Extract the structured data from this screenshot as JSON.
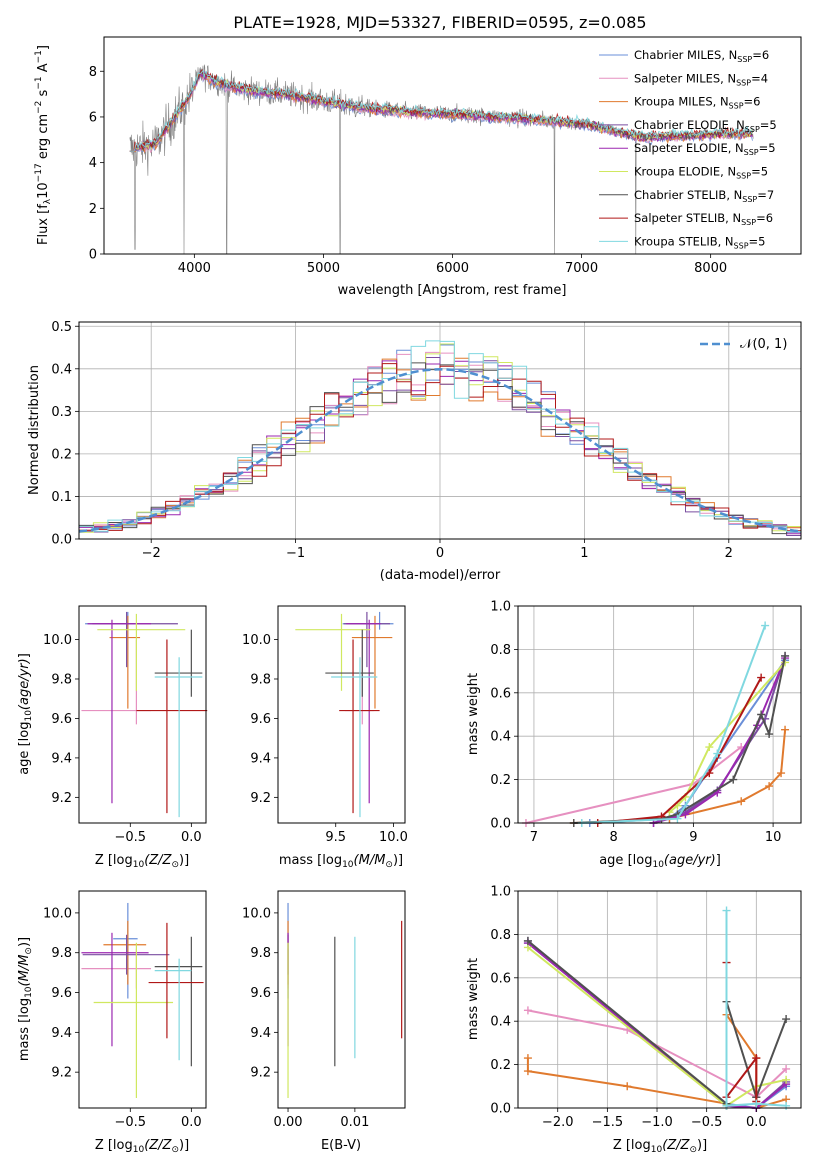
{
  "figure_title": "PLATE=1928, MJD=53327, FIBERID=0595, z=0.085",
  "models": [
    {
      "label": "Chabrier MILES, N",
      "n": "6",
      "color": "#6a8fd8"
    },
    {
      "label": "Salpeter MILES, N",
      "n": "4",
      "color": "#e690c0"
    },
    {
      "label": "Kroupa MILES, N",
      "n": "6",
      "color": "#e07a2e"
    },
    {
      "label": "Chabrier ELODIE, N",
      "n": "5",
      "color": "#7a4ea0"
    },
    {
      "label": "Salpeter ELODIE, N",
      "n": "5",
      "color": "#9b27b0"
    },
    {
      "label": "Kroupa ELODIE, N",
      "n": "5",
      "color": "#d0e860"
    },
    {
      "label": "Chabrier STELIB, N",
      "n": "7",
      "color": "#505050"
    },
    {
      "label": "Salpeter STELIB, N",
      "n": "6",
      "color": "#b01818"
    },
    {
      "label": "Kroupa STELIB, N",
      "n": "5",
      "color": "#80d8e0"
    }
  ],
  "legend_subscript": "SSP",
  "normal_label": "𝒩(0, 1)",
  "chart_data": [
    {
      "id": "spectrum",
      "type": "line",
      "xlabel": "wavelength [Angstrom, rest frame]",
      "ylabel": "Flux [f",
      "xlim": [
        3300,
        8700
      ],
      "ylim": [
        0,
        9.5
      ],
      "xticks": [
        "4000",
        "5000",
        "6000",
        "7000",
        "8000"
      ],
      "yticks": [
        "0",
        "2",
        "4",
        "6",
        "8"
      ],
      "data_color": "#808080",
      "legend": "upper right",
      "continuum_x": [
        3500,
        3700,
        3850,
        3950,
        4050,
        4150,
        4300,
        4500,
        4700,
        4900,
        5100,
        5300,
        5500,
        5700,
        5900,
        6100,
        6300,
        6500,
        6700,
        6900,
        7100,
        7300,
        7500,
        7700,
        7900,
        8100,
        8300
      ],
      "continuum_y": [
        4.6,
        4.8,
        6.0,
        6.8,
        7.9,
        7.6,
        7.3,
        7.1,
        7.0,
        6.8,
        6.6,
        6.4,
        6.3,
        6.2,
        6.15,
        6.1,
        6.0,
        5.95,
        5.85,
        5.75,
        5.6,
        5.3,
        5.1,
        5.15,
        5.2,
        5.25,
        5.25
      ],
      "dips": [
        {
          "x": 3540,
          "y": 0.2
        },
        {
          "x": 3920,
          "y": 0
        },
        {
          "x": 4250,
          "y": 0
        },
        {
          "x": 5130,
          "y": 0
        },
        {
          "x": 6790,
          "y": 0
        },
        {
          "x": 7420,
          "y": 0
        }
      ]
    },
    {
      "id": "residuals",
      "type": "step",
      "xlabel": "(data-model)/error",
      "ylabel": "Normed distribution",
      "xlim": [
        -2.5,
        2.5
      ],
      "ylim": [
        0,
        0.51
      ],
      "xticks": [
        "−2",
        "−1",
        "0",
        "1",
        "2"
      ],
      "yticks": [
        "0.0",
        "0.1",
        "0.2",
        "0.3",
        "0.4",
        "0.5"
      ],
      "grid": true,
      "legend": "upper right"
    },
    {
      "id": "age-vs-Z",
      "type": "errorbar",
      "xlabel": "Z [log",
      "ylabel": "age  [log",
      "xlim": [
        -0.92,
        0.12
      ],
      "ylim": [
        9.07,
        10.17
      ],
      "xticks": [
        "−0.5",
        "0.0"
      ],
      "yticks": [
        "9.2",
        "9.4",
        "9.6",
        "9.8",
        "10.0"
      ],
      "points": [
        {
          "m": 0,
          "x": -0.52,
          "y": 10.08,
          "xerr": [
            0.35,
            0.06
          ],
          "yerr": [
            0.03,
            0.06
          ]
        },
        {
          "m": 1,
          "x": -0.45,
          "y": 9.64,
          "xerr": [
            0.45,
            0.12
          ],
          "yerr": [
            0.07,
            0.36
          ]
        },
        {
          "m": 2,
          "x": -0.52,
          "y": 10.01,
          "xerr": [
            0.15,
            0.1
          ],
          "yerr": [
            0.36,
            0.11
          ]
        },
        {
          "m": 3,
          "x": -0.53,
          "y": 10.08,
          "xerr": [
            0.28,
            0.42
          ],
          "yerr": [
            0.22,
            0.06
          ]
        },
        {
          "m": 4,
          "x": -0.65,
          "y": 10.08,
          "xerr": [
            0.2,
            0.32
          ],
          "yerr": [
            0.91,
            0.02
          ]
        },
        {
          "m": 5,
          "x": -0.45,
          "y": 10.05,
          "xerr": [
            0.32,
            0.4
          ],
          "yerr": [
            0.31,
            0.08
          ]
        },
        {
          "m": 6,
          "x": 0.0,
          "y": 9.83,
          "xerr": [
            0.3,
            0.09
          ],
          "yerr": [
            0.12,
            0.22
          ]
        },
        {
          "m": 7,
          "x": -0.2,
          "y": 9.64,
          "xerr": [
            0.25,
            0.33
          ],
          "yerr": [
            0.52,
            0.36
          ]
        },
        {
          "m": 8,
          "x": -0.1,
          "y": 9.81,
          "xerr": [
            0.2,
            0.19
          ],
          "yerr": [
            0.71,
            0.1
          ]
        }
      ]
    },
    {
      "id": "age-vs-mass",
      "type": "errorbar",
      "xlabel": "mass [log",
      "ylabel": "",
      "xlim": [
        9.0,
        10.1
      ],
      "ylim": [
        9.07,
        10.17
      ],
      "xticks": [
        "9.5",
        "10.0"
      ],
      "yticks": [
        "9.2",
        "9.4",
        "9.6",
        "9.8",
        "10.0"
      ],
      "points": [
        {
          "m": 0,
          "x": 9.88,
          "y": 10.08,
          "xerr": [
            0.32,
            0.12
          ],
          "yerr": [
            0.03,
            0.06
          ]
        },
        {
          "m": 1,
          "x": 9.73,
          "y": 9.64,
          "xerr": [
            0.15,
            0.1
          ],
          "yerr": [
            0.07,
            0.36
          ]
        },
        {
          "m": 2,
          "x": 9.84,
          "y": 10.01,
          "xerr": [
            0.2,
            0.15
          ],
          "yerr": [
            0.36,
            0.11
          ]
        },
        {
          "m": 3,
          "x": 9.77,
          "y": 10.08,
          "xerr": [
            0.2,
            0.2
          ],
          "yerr": [
            0.22,
            0.06
          ]
        },
        {
          "m": 4,
          "x": 9.79,
          "y": 10.08,
          "xerr": [
            0.2,
            0.1
          ],
          "yerr": [
            0.91,
            0.02
          ]
        },
        {
          "m": 5,
          "x": 9.55,
          "y": 10.05,
          "xerr": [
            0.4,
            0.25
          ],
          "yerr": [
            0.31,
            0.08
          ]
        },
        {
          "m": 6,
          "x": 9.73,
          "y": 9.83,
          "xerr": [
            0.32,
            0.1
          ],
          "yerr": [
            0.12,
            0.22
          ]
        },
        {
          "m": 7,
          "x": 9.65,
          "y": 9.64,
          "xerr": [
            0.12,
            0.23
          ],
          "yerr": [
            0.52,
            0.36
          ]
        },
        {
          "m": 8,
          "x": 9.71,
          "y": 9.81,
          "xerr": [
            0.25,
            0.15
          ],
          "yerr": [
            0.71,
            0.1
          ]
        }
      ]
    },
    {
      "id": "weight-vs-age",
      "type": "line",
      "xlabel": "age  [log",
      "ylabel": "mass weight",
      "xlim": [
        6.8,
        10.35
      ],
      "ylim": [
        0,
        1
      ],
      "xticks": [
        "7",
        "8",
        "9",
        "10"
      ],
      "yticks": [
        "0.0",
        "0.2",
        "0.4",
        "0.6",
        "0.8",
        "1.0"
      ],
      "grid": true,
      "series": [
        {
          "m": 0,
          "x": [
            7.7,
            8.7,
            8.9,
            9.3,
            10.15
          ],
          "y": [
            0.0,
            0.02,
            0.08,
            0.3,
            0.75
          ]
        },
        {
          "m": 1,
          "x": [
            6.9,
            9.0,
            9.6
          ],
          "y": [
            0.0,
            0.18,
            0.35
          ]
        },
        {
          "m": 2,
          "x": [
            7.5,
            8.7,
            9.6,
            9.95,
            10.1,
            10.15
          ],
          "y": [
            0.0,
            0.02,
            0.1,
            0.17,
            0.23,
            0.43
          ]
        },
        {
          "m": 3,
          "x": [
            8.5,
            8.9,
            9.3,
            9.9,
            10.15
          ],
          "y": [
            0.0,
            0.05,
            0.15,
            0.48,
            0.77
          ]
        },
        {
          "m": 4,
          "x": [
            8.5,
            8.9,
            9.3,
            9.8,
            10.15
          ],
          "y": [
            0.0,
            0.04,
            0.14,
            0.45,
            0.76
          ]
        },
        {
          "m": 5,
          "x": [
            8.7,
            8.8,
            8.9,
            9.2,
            10.15
          ],
          "y": [
            0.05,
            0.08,
            0.12,
            0.35,
            0.74
          ]
        },
        {
          "m": 6,
          "x": [
            7.5,
            8.6,
            8.8,
            9.5,
            9.85,
            9.95,
            10.15
          ],
          "y": [
            0.0,
            0.02,
            0.04,
            0.2,
            0.5,
            0.41,
            0.77
          ]
        },
        {
          "m": 7,
          "x": [
            7.8,
            8.6,
            9.2,
            9.85
          ],
          "y": [
            0.0,
            0.03,
            0.23,
            0.67
          ]
        },
        {
          "m": 8,
          "x": [
            7.6,
            8.8,
            9.3,
            9.9
          ],
          "y": [
            0.0,
            0.02,
            0.32,
            0.91
          ]
        }
      ]
    },
    {
      "id": "mass-vs-Z",
      "type": "errorbar",
      "xlabel": "Z [log",
      "ylabel": "mass [log",
      "xlim": [
        -0.92,
        0.12
      ],
      "ylim": [
        9.02,
        10.11
      ],
      "xticks": [
        "−0.5",
        "0.0"
      ],
      "yticks": [
        "9.2",
        "9.4",
        "9.6",
        "9.8",
        "10.0"
      ],
      "points": [
        {
          "m": 0,
          "x": -0.52,
          "y": 9.87,
          "xerr": [
            0.12,
            0.08
          ],
          "yerr": [
            0.3,
            0.18
          ]
        },
        {
          "m": 1,
          "x": -0.45,
          "y": 9.72,
          "xerr": [
            0.45,
            0.12
          ],
          "yerr": [
            0.1,
            0.1
          ]
        },
        {
          "m": 2,
          "x": -0.52,
          "y": 9.84,
          "xerr": [
            0.2,
            0.15
          ],
          "yerr": [
            0.2,
            0.12
          ]
        },
        {
          "m": 3,
          "x": -0.53,
          "y": 9.79,
          "xerr": [
            0.36,
            0.35
          ],
          "yerr": [
            0.1,
            0.1
          ]
        },
        {
          "m": 4,
          "x": -0.65,
          "y": 9.8,
          "xerr": [
            0.25,
            0.3
          ],
          "yerr": [
            0.47,
            0.1
          ]
        },
        {
          "m": 5,
          "x": -0.45,
          "y": 9.55,
          "xerr": [
            0.35,
            0.3
          ],
          "yerr": [
            0.48,
            0.3
          ]
        },
        {
          "m": 6,
          "x": 0.0,
          "y": 9.73,
          "xerr": [
            0.3,
            0.09
          ],
          "yerr": [
            0.5,
            0.15
          ]
        },
        {
          "m": 7,
          "x": -0.2,
          "y": 9.65,
          "xerr": [
            0.15,
            0.3
          ],
          "yerr": [
            0.28,
            0.3
          ]
        },
        {
          "m": 8,
          "x": -0.1,
          "y": 9.71,
          "xerr": [
            0.2,
            0.1
          ],
          "yerr": [
            0.45,
            0.06
          ]
        }
      ]
    },
    {
      "id": "mass-vs-EBV",
      "type": "errorbar",
      "xlabel": "E(B-V)",
      "ylabel": "",
      "xlim": [
        -0.0015,
        0.0175
      ],
      "ylim": [
        9.02,
        10.11
      ],
      "xticks": [
        "0.00",
        "0.01"
      ],
      "yticks": [
        "9.2",
        "9.4",
        "9.6",
        "9.8",
        "10.0"
      ],
      "points": [
        {
          "m": 0,
          "x": 0.0,
          "y": 9.87,
          "xerr": [
            0,
            0
          ],
          "yerr": [
            0.3,
            0.18
          ]
        },
        {
          "m": 1,
          "x": 0.0,
          "y": 9.72,
          "xerr": [
            0,
            0
          ],
          "yerr": [
            0.1,
            0.1
          ]
        },
        {
          "m": 2,
          "x": 0.0,
          "y": 9.84,
          "xerr": [
            0,
            0
          ],
          "yerr": [
            0.2,
            0.12
          ]
        },
        {
          "m": 3,
          "x": 0.0,
          "y": 9.79,
          "xerr": [
            0,
            0
          ],
          "yerr": [
            0.1,
            0.1
          ]
        },
        {
          "m": 4,
          "x": 0.0,
          "y": 9.8,
          "xerr": [
            0,
            0
          ],
          "yerr": [
            0.47,
            0.1
          ]
        },
        {
          "m": 5,
          "x": 0.0,
          "y": 9.55,
          "xerr": [
            0,
            0
          ],
          "yerr": [
            0.48,
            0.3
          ]
        },
        {
          "m": 6,
          "x": 0.007,
          "y": 9.55,
          "xerr": [
            0,
            0
          ],
          "yerr": [
            0.32,
            0.33
          ]
        },
        {
          "m": 7,
          "x": 0.017,
          "y": 9.67,
          "xerr": [
            0,
            0
          ],
          "yerr": [
            0.3,
            0.29
          ]
        },
        {
          "m": 8,
          "x": 0.01,
          "y": 9.6,
          "xerr": [
            0,
            0
          ],
          "yerr": [
            0.33,
            0.28
          ]
        }
      ]
    },
    {
      "id": "weight-vs-Z",
      "type": "line",
      "xlabel": "Z [log",
      "ylabel": "mass weight",
      "xlim": [
        -2.4,
        0.45
      ],
      "ylim": [
        0,
        1
      ],
      "xticks": [
        "−2.0",
        "−1.5",
        "−1.0",
        "−0.5",
        "0.0"
      ],
      "yticks": [
        "0.0",
        "0.2",
        "0.4",
        "0.6",
        "0.8",
        "1.0"
      ],
      "grid": true,
      "series": [
        {
          "m": 0,
          "x": [
            -2.3,
            -0.3,
            0.0,
            0.3
          ],
          "y": [
            0.76,
            0.02,
            0.0,
            0.1
          ]
        },
        {
          "m": 1,
          "x": [
            -2.3,
            -1.3,
            0.0,
            0.3
          ],
          "y": [
            0.45,
            0.36,
            0.05,
            0.18
          ]
        },
        {
          "m": 2,
          "x": [
            -2.3,
            -2.3,
            -1.3,
            -0.3,
            -0.3,
            0.0,
            0.0,
            0.3
          ],
          "y": [
            0.23,
            0.17,
            0.1,
            0.02,
            0.43,
            0.23,
            0.0,
            0.04
          ]
        },
        {
          "m": 3,
          "x": [
            -2.3,
            -0.3,
            0.0,
            0.3
          ],
          "y": [
            0.77,
            0.01,
            0.0,
            0.12
          ]
        },
        {
          "m": 4,
          "x": [
            -2.3,
            -0.3,
            0.0,
            0.3
          ],
          "y": [
            0.76,
            0.01,
            0.0,
            0.11
          ]
        },
        {
          "m": 5,
          "x": [
            -2.3,
            -0.3,
            0.0,
            0.3
          ],
          "y": [
            0.74,
            0.01,
            0.1,
            0.13
          ]
        },
        {
          "m": 6,
          "x": [
            -2.3,
            -0.3,
            -0.3,
            0.0,
            0.0,
            0.3
          ],
          "y": [
            0.77,
            0.02,
            0.49,
            0.05,
            0.05,
            0.41
          ]
        },
        {
          "m": 7,
          "x": [
            -0.3,
            -0.3,
            0.0,
            0.0
          ],
          "y": [
            0.67,
            0.05,
            0.23,
            0.03
          ]
        },
        {
          "m": 8,
          "x": [
            -0.3,
            -0.3,
            0.0,
            0.3
          ],
          "y": [
            0.91,
            0.01,
            0.02,
            0.01
          ]
        }
      ]
    }
  ]
}
